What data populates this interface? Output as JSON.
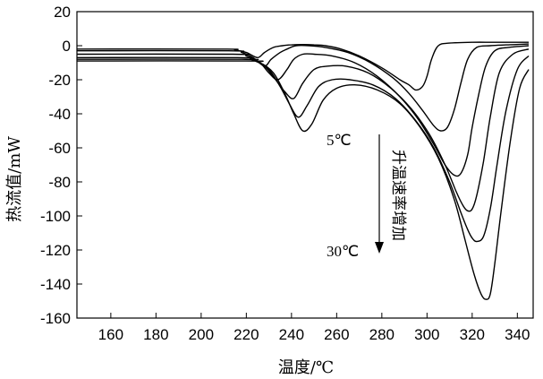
{
  "chart_data": {
    "type": "line",
    "xlabel": "温度/℃",
    "ylabel": "热流值/mW",
    "xlim": [
      145,
      347
    ],
    "ylim": [
      -160,
      20
    ],
    "x_ticks": [
      160,
      180,
      200,
      220,
      240,
      260,
      280,
      300,
      320,
      340
    ],
    "y_ticks": [
      20,
      0,
      -20,
      -40,
      -60,
      -80,
      -100,
      -120,
      -140,
      -160
    ],
    "grid": false,
    "annotations": {
      "top_rate": "5℃",
      "bottom_rate": "30℃",
      "arrow_text": "升温速率增加"
    },
    "series": [
      {
        "x": [
          145,
          210,
          215,
          220,
          225,
          228,
          232,
          236,
          240,
          245,
          250,
          255,
          262,
          270,
          280,
          288,
          292,
          295,
          298,
          300,
          302,
          305,
          310,
          320,
          330,
          345
        ],
        "y": [
          -2,
          -2,
          -2.5,
          -4,
          -7,
          -4,
          -1,
          0,
          0.5,
          0.7,
          0.5,
          0,
          -2,
          -6,
          -13,
          -20,
          -23,
          -26,
          -24,
          -18,
          -8,
          0,
          1.5,
          2,
          2,
          2
        ]
      },
      {
        "x": [
          145,
          212,
          218,
          223,
          228,
          231,
          235,
          238,
          242,
          248,
          255,
          265,
          275,
          285,
          292,
          298,
          303,
          306,
          309,
          312,
          315,
          318,
          322,
          328,
          335,
          345
        ],
        "y": [
          -3,
          -3,
          -4,
          -7,
          -12,
          -8,
          -4,
          -2,
          0,
          0,
          -1,
          -4,
          -10,
          -19,
          -28,
          -38,
          -47,
          -50,
          -48,
          -38,
          -22,
          -8,
          -1,
          0,
          0.5,
          1
        ]
      },
      {
        "x": [
          145,
          214,
          220,
          226,
          230,
          234,
          238,
          241,
          245,
          250,
          258,
          268,
          278,
          288,
          296,
          303,
          308,
          312,
          315,
          318,
          320,
          323,
          326,
          330,
          336,
          345
        ],
        "y": [
          -5,
          -5,
          -6,
          -10,
          -16,
          -20,
          -14,
          -8,
          -5,
          -5,
          -6,
          -10,
          -18,
          -30,
          -43,
          -58,
          -70,
          -76,
          -75,
          -64,
          -48,
          -28,
          -12,
          -3,
          -1,
          0
        ]
      },
      {
        "x": [
          145,
          216,
          222,
          228,
          233,
          237,
          241,
          245,
          250,
          256,
          264,
          274,
          284,
          293,
          301,
          308,
          313,
          316,
          318,
          320,
          322,
          325,
          328,
          332,
          338,
          345
        ],
        "y": [
          -7,
          -7,
          -8,
          -12,
          -20,
          -27,
          -31,
          -22,
          -14,
          -12,
          -12,
          -16,
          -25,
          -37,
          -52,
          -70,
          -86,
          -94,
          -97,
          -96,
          -88,
          -68,
          -42,
          -16,
          -5,
          -2
        ]
      },
      {
        "x": [
          145,
          218,
          224,
          230,
          235,
          239,
          243,
          247,
          252,
          258,
          266,
          276,
          286,
          295,
          303,
          310,
          315,
          318,
          320,
          322,
          325,
          328,
          331,
          335,
          340,
          345
        ],
        "y": [
          -8,
          -8,
          -9,
          -14,
          -24,
          -34,
          -42,
          -35,
          -24,
          -20,
          -20,
          -23,
          -31,
          -44,
          -60,
          -80,
          -98,
          -108,
          -113,
          -115,
          -112,
          -96,
          -70,
          -38,
          -14,
          -6
        ]
      },
      {
        "x": [
          145,
          220,
          226,
          232,
          237,
          241,
          245,
          249,
          254,
          260,
          268,
          278,
          288,
          297,
          305,
          312,
          317,
          321,
          324,
          326,
          328,
          330,
          333,
          337,
          341,
          345
        ],
        "y": [
          -9,
          -9,
          -10,
          -16,
          -28,
          -40,
          -50,
          -46,
          -32,
          -25,
          -23,
          -26,
          -34,
          -48,
          -66,
          -90,
          -115,
          -135,
          -146,
          -149,
          -146,
          -128,
          -95,
          -55,
          -25,
          -14
        ]
      }
    ]
  }
}
